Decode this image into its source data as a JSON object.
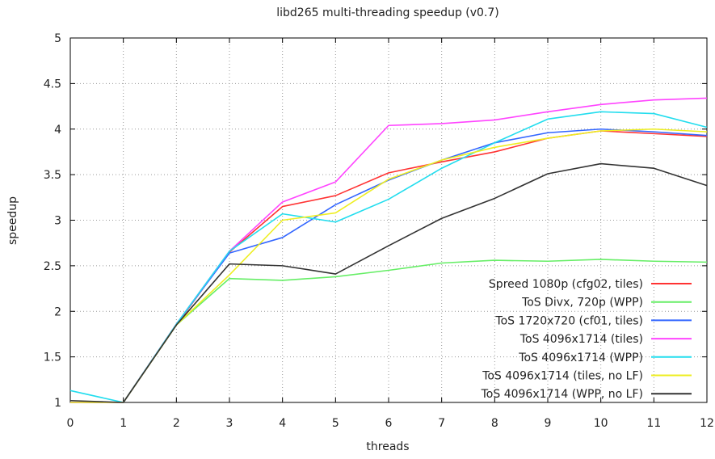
{
  "chart_data": {
    "type": "line",
    "title": "libd265 multi-threading speedup (v0.7)",
    "xlabel": "threads",
    "ylabel": "speedup",
    "xlim": [
      0,
      12
    ],
    "ylim": [
      1,
      5
    ],
    "x_ticks": [
      "0",
      "1",
      "2",
      "3",
      "4",
      "5",
      "6",
      "7",
      "8",
      "9",
      "10",
      "11",
      "12"
    ],
    "y_ticks": [
      "1",
      "1.5",
      "2",
      "2.5",
      "3",
      "3.5",
      "4",
      "4.5",
      "5"
    ],
    "grid": true,
    "grid_style": "dotted",
    "legend_position": "bottom-right",
    "x": [
      0,
      1,
      2,
      3,
      4,
      5,
      6,
      7,
      8,
      9,
      10,
      11,
      12
    ],
    "series": [
      {
        "name": "Spreed 1080p (cfg02, tiles)",
        "color": "#ff3333",
        "values": [
          1.0,
          1.0,
          1.85,
          2.65,
          3.15,
          3.27,
          3.52,
          3.64,
          3.75,
          3.9,
          3.98,
          3.95,
          3.92
        ]
      },
      {
        "name": "ToS Divx, 720p (WPP)",
        "color": "#66ee66",
        "values": [
          1.0,
          1.0,
          1.85,
          2.36,
          2.34,
          2.38,
          2.45,
          2.53,
          2.56,
          2.55,
          2.57,
          2.55,
          2.54
        ]
      },
      {
        "name": "ToS 1720x720 (cf01, tiles)",
        "color": "#3366ff",
        "values": [
          1.0,
          1.0,
          1.86,
          2.64,
          2.81,
          3.17,
          3.44,
          3.66,
          3.85,
          3.96,
          4.0,
          3.97,
          3.93
        ]
      },
      {
        "name": "ToS 4096x1714 (tiles)",
        "color": "#ff44ff",
        "values": [
          1.0,
          1.0,
          1.86,
          2.66,
          3.2,
          3.42,
          4.04,
          4.06,
          4.1,
          4.19,
          4.27,
          4.32,
          4.34
        ]
      },
      {
        "name": "ToS 4096x1714 (WPP)",
        "color": "#22ddee",
        "values": [
          1.13,
          1.0,
          1.86,
          2.66,
          3.07,
          2.98,
          3.23,
          3.57,
          3.85,
          4.11,
          4.19,
          4.17,
          4.02
        ]
      },
      {
        "name": "ToS 4096x1714 (tiles, no LF)",
        "color": "#eeee22",
        "values": [
          1.0,
          1.0,
          1.85,
          2.4,
          3.0,
          3.08,
          3.45,
          3.66,
          3.8,
          3.9,
          3.98,
          4.0,
          3.97
        ]
      },
      {
        "name": "ToS 4096x1714 (WPP, no LF)",
        "color": "#333333",
        "values": [
          1.02,
          1.0,
          1.85,
          2.52,
          2.5,
          2.41,
          2.72,
          3.02,
          3.24,
          3.51,
          3.62,
          3.57,
          3.38
        ]
      }
    ]
  }
}
